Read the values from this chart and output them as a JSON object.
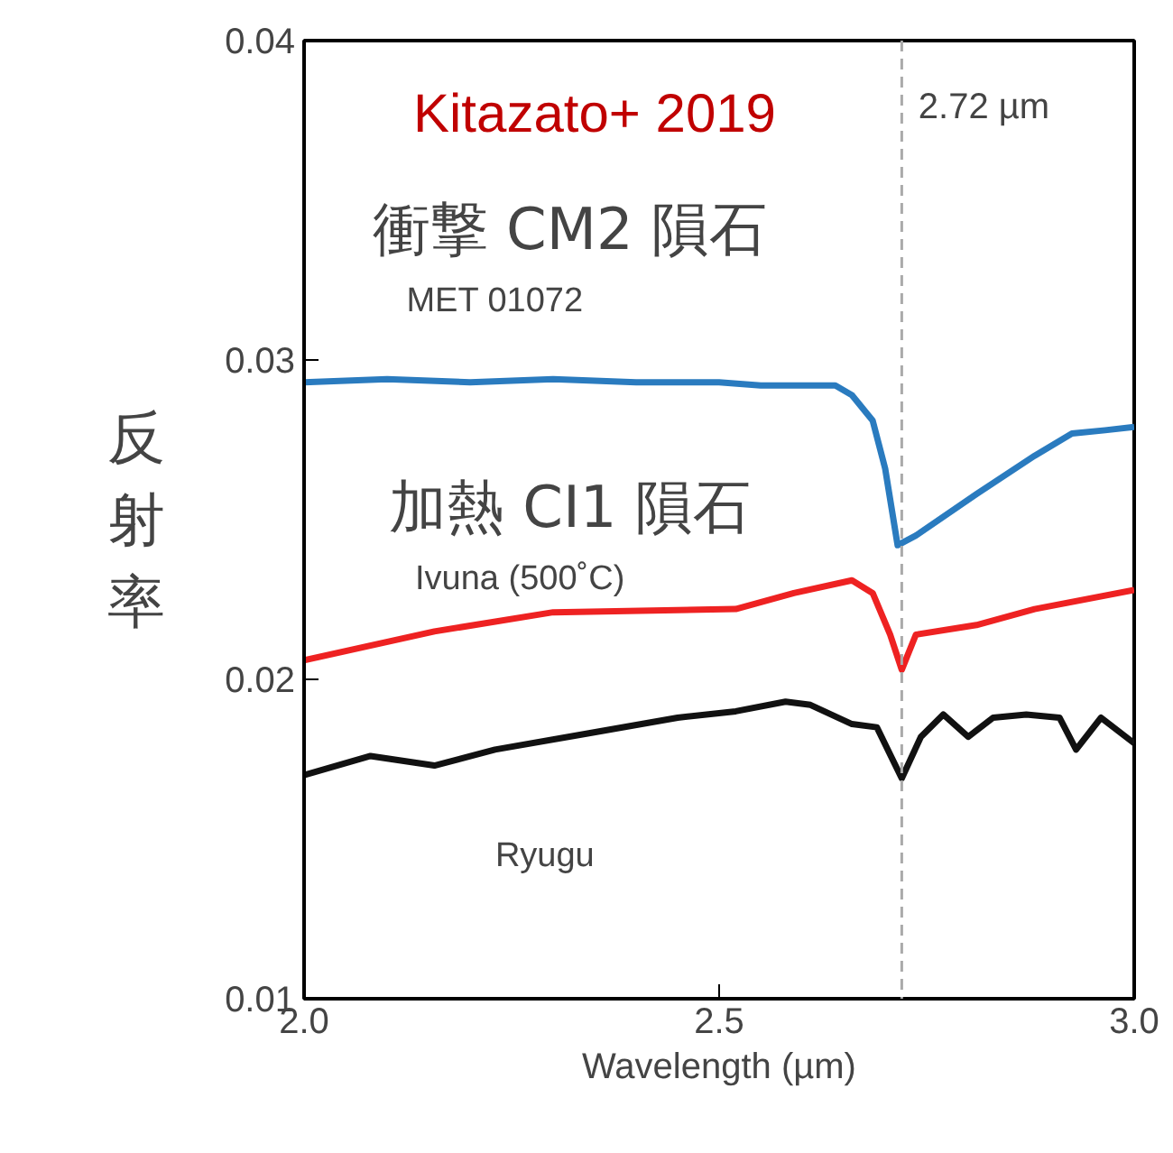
{
  "chart_data": {
    "type": "line",
    "title": "Kitazato+ 2019",
    "xlabel": "Wavelength (µm)",
    "ylabel": "反射率",
    "xlim": [
      2.0,
      3.0
    ],
    "xticks": [
      {
        "value": 2.0,
        "label": "2.0"
      },
      {
        "value": 2.5,
        "label": "2.5"
      },
      {
        "value": 3.0,
        "label": "3.0"
      }
    ],
    "ylim": [
      0.01,
      0.04
    ],
    "yticks": [
      {
        "value": 0.01,
        "label": "0.01"
      },
      {
        "value": 0.02,
        "label": "0.02"
      },
      {
        "value": 0.03,
        "label": "0.03"
      },
      {
        "value": 0.04,
        "label": "0.04"
      }
    ],
    "grid": false,
    "marker": "none",
    "line_style": "solid",
    "ref_lines": [
      {
        "axis": "x",
        "value": 2.72,
        "label": "2.72 µm",
        "color": "#aaaaaa",
        "line_style": "dashed"
      }
    ],
    "annotations": [
      "衝撃 CM2 隕石",
      "加熱 CI1 隕石"
    ],
    "series": [
      {
        "name": "MET 01072",
        "color": "#2a7bbf",
        "x": [
          2.0,
          2.1,
          2.2,
          2.3,
          2.4,
          2.5,
          2.55,
          2.6,
          2.64,
          2.66,
          2.685,
          2.7,
          2.715,
          2.737,
          2.81,
          2.88,
          2.925,
          2.965,
          3.0
        ],
        "values": [
          0.0293,
          0.0294,
          0.0293,
          0.0294,
          0.0293,
          0.0293,
          0.0292,
          0.0292,
          0.0292,
          0.0289,
          0.0281,
          0.0266,
          0.0242,
          0.0245,
          0.0258,
          0.027,
          0.0277,
          0.0278,
          0.0279
        ]
      },
      {
        "name": "Ivuna (500˚C)",
        "color": "#ee2222",
        "x": [
          2.0,
          2.157,
          2.3,
          2.52,
          2.59,
          2.66,
          2.685,
          2.706,
          2.72,
          2.737,
          2.81,
          2.88,
          3.0
        ],
        "values": [
          0.0206,
          0.0215,
          0.0221,
          0.0222,
          0.0227,
          0.0231,
          0.0227,
          0.0214,
          0.0203,
          0.0214,
          0.0217,
          0.0222,
          0.0228
        ]
      },
      {
        "name": "Ryugu",
        "color": "#111111",
        "x": [
          2.0,
          2.08,
          2.157,
          2.23,
          2.34,
          2.45,
          2.52,
          2.58,
          2.61,
          2.66,
          2.69,
          2.72,
          2.743,
          2.77,
          2.8,
          2.83,
          2.87,
          2.91,
          2.93,
          2.96,
          3.0
        ],
        "values": [
          0.017,
          0.0176,
          0.0173,
          0.0178,
          0.0183,
          0.0188,
          0.019,
          0.0193,
          0.0192,
          0.0186,
          0.0185,
          0.0169,
          0.0182,
          0.0189,
          0.0182,
          0.0188,
          0.0189,
          0.0188,
          0.0178,
          0.0188,
          0.018
        ]
      }
    ]
  }
}
